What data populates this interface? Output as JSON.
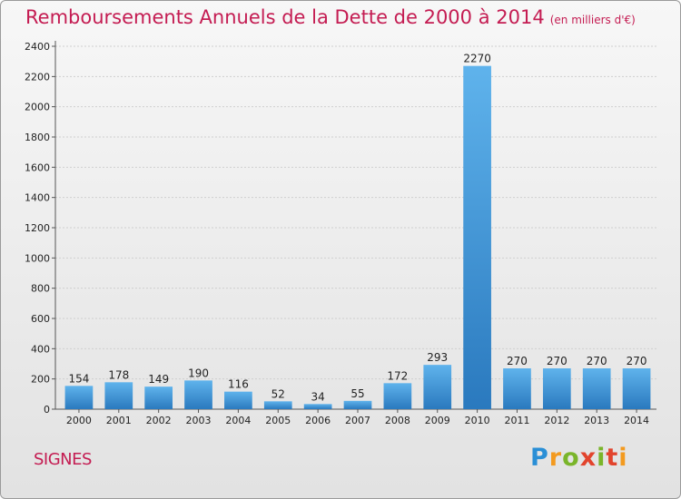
{
  "title": "Remboursements Annuels de la Dette de 2000 à 2014",
  "unit_note": "(en milliers d'€)",
  "town": "SIGNES",
  "logo_text": "Proxiti",
  "chart_data": {
    "type": "bar",
    "title": "Remboursements Annuels de la Dette de 2000 à 2014",
    "xlabel": "",
    "ylabel": "",
    "categories": [
      "2000",
      "2001",
      "2002",
      "2003",
      "2004",
      "2005",
      "2006",
      "2007",
      "2008",
      "2009",
      "2010",
      "2011",
      "2012",
      "2013",
      "2014"
    ],
    "values": [
      154,
      178,
      149,
      190,
      116,
      52,
      34,
      55,
      172,
      293,
      2270,
      270,
      270,
      270,
      270
    ],
    "ylim": [
      0,
      2400
    ],
    "yticks": [
      0,
      200,
      400,
      600,
      800,
      1000,
      1200,
      1400,
      1600,
      1800,
      2000,
      2200,
      2400
    ],
    "grid": true,
    "bar_color": "#3d9ee0",
    "label_color": "#222222"
  }
}
